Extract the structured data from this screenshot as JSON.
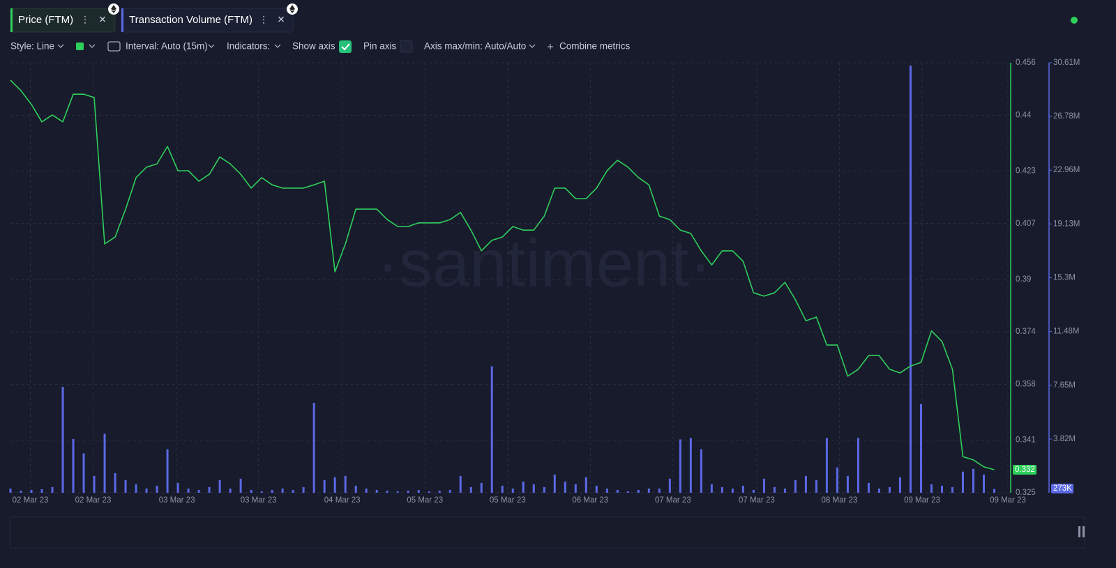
{
  "tabs": [
    "Price (FTM)",
    "Transaction Volume (FTM)"
  ],
  "toolbar": {
    "style": "Style: Line",
    "interval": "Interval: Auto (15m)",
    "indicators": "Indicators:",
    "show_axis": "Show axis",
    "pin_axis": "Pin axis",
    "axis_minmax": "Axis max/min: Auto/Auto",
    "combine": "Combine metrics"
  },
  "chart_data": {
    "type": "combo",
    "watermark": "·santiment·",
    "xlim": [
      0,
      95.5
    ],
    "xticks": [
      {
        "value": 1.9,
        "label": "02 Mar 23"
      },
      {
        "value": 7.9,
        "label": "02 Mar 23"
      },
      {
        "value": 15.9,
        "label": "03 Mar 23"
      },
      {
        "value": 23.7,
        "label": "03 Mar 23"
      },
      {
        "value": 31.7,
        "label": "04 Mar 23"
      },
      {
        "value": 39.6,
        "label": "05 Mar 23"
      },
      {
        "value": 47.5,
        "label": "05 Mar 23"
      },
      {
        "value": 55.4,
        "label": "06 Mar 23"
      },
      {
        "value": 63.3,
        "label": "07 Mar 23"
      },
      {
        "value": 71.3,
        "label": "07 Mar 23"
      },
      {
        "value": 79.2,
        "label": "08 Mar 23"
      },
      {
        "value": 87.1,
        "label": "09 Mar 23"
      },
      {
        "value": 95.3,
        "label": "09 Mar 23"
      }
    ],
    "ylim": [
      0.325,
      0.456
    ],
    "yticks": [
      0.456,
      0.44,
      0.423,
      0.407,
      0.39,
      0.374,
      0.358,
      0.341,
      0.325
    ],
    "y2lim": [
      0,
      30610000
    ],
    "y2ticks": [
      {
        "value": 30610000,
        "label": "30.61M"
      },
      {
        "value": 26780000,
        "label": "26.78M"
      },
      {
        "value": 22960000,
        "label": "22.96M"
      },
      {
        "value": 19130000,
        "label": "19.13M"
      },
      {
        "value": 15300000,
        "label": "15.3M"
      },
      {
        "value": 11480000,
        "label": "11.48M"
      },
      {
        "value": 7650000,
        "label": "7.65M"
      },
      {
        "value": 3820000,
        "label": "3.82M"
      }
    ],
    "grid": true,
    "series": [
      {
        "name": "Price (FTM)",
        "type": "line",
        "color": "#2fcf5c",
        "current_label": "0.332",
        "values": [
          0.4507,
          0.4475,
          0.4433,
          0.438,
          0.4401,
          0.438,
          0.4464,
          0.4464,
          0.4454,
          0.4008,
          0.4029,
          0.4114,
          0.421,
          0.4242,
          0.4252,
          0.4305,
          0.4231,
          0.4231,
          0.4199,
          0.422,
          0.4273,
          0.4252,
          0.422,
          0.4178,
          0.421,
          0.4188,
          0.4178,
          0.4178,
          0.4178,
          0.4188,
          0.4199,
          0.3923,
          0.4008,
          0.4114,
          0.4114,
          0.4114,
          0.4082,
          0.4061,
          0.4061,
          0.4072,
          0.4072,
          0.4072,
          0.4082,
          0.4104,
          0.405,
          0.3987,
          0.4019,
          0.4029,
          0.4061,
          0.405,
          0.405,
          0.4093,
          0.4178,
          0.4178,
          0.4146,
          0.4146,
          0.4178,
          0.4231,
          0.4263,
          0.4242,
          0.421,
          0.4188,
          0.4093,
          0.4082,
          0.405,
          0.404,
          0.3987,
          0.3944,
          0.3987,
          0.3987,
          0.3955,
          0.3859,
          0.3849,
          0.3859,
          0.3891,
          0.3838,
          0.3774,
          0.3785,
          0.37,
          0.37,
          0.3605,
          0.3626,
          0.3668,
          0.3668,
          0.3626,
          0.3615,
          0.3636,
          0.3647,
          0.3743,
          0.3711,
          0.3626,
          0.336,
          0.335,
          0.3329,
          0.332
        ]
      },
      {
        "name": "Transaction Volume (FTM)",
        "type": "bar",
        "axis": "y2",
        "color": "#5b69e6",
        "current_label": "273K",
        "values": [
          300000,
          150000,
          200000,
          250000,
          400000,
          7540000,
          3820000,
          2800000,
          1200000,
          4200000,
          1400000,
          900000,
          600000,
          300000,
          500000,
          3100000,
          700000,
          300000,
          200000,
          400000,
          900000,
          300000,
          1000000,
          200000,
          100000,
          200000,
          300000,
          200000,
          400000,
          6400000,
          900000,
          1100000,
          1200000,
          500000,
          300000,
          200000,
          150000,
          100000,
          150000,
          200000,
          100000,
          150000,
          200000,
          1200000,
          400000,
          700000,
          9000000,
          500000,
          300000,
          800000,
          600000,
          400000,
          1300000,
          800000,
          600000,
          1100000,
          500000,
          300000,
          200000,
          100000,
          200000,
          300000,
          300000,
          1000000,
          3800000,
          3900000,
          3100000,
          600000,
          400000,
          300000,
          500000,
          200000,
          1000000,
          400000,
          300000,
          900000,
          1200000,
          900000,
          3900000,
          1800000,
          1200000,
          3900000,
          700000,
          300000,
          400000,
          1100000,
          30400000,
          6300000,
          600000,
          500000,
          400000,
          1500000,
          1700000,
          1300000,
          273000
        ]
      }
    ]
  }
}
